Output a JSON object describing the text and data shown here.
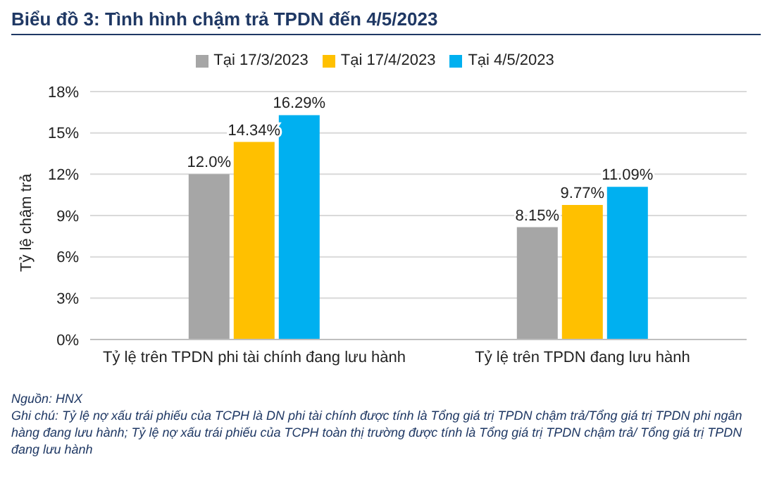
{
  "chart_data": {
    "type": "bar",
    "title": "Biểu đồ 3: Tình hình chậm trả TPDN đến 4/5/2023",
    "ylabel": "Tỷ lệ chậm trả",
    "categories": [
      "Tỷ lệ trên TPDN phi tài chính đang lưu hành",
      "Tỷ lệ trên TPDN đang lưu hành"
    ],
    "series": [
      {
        "name": "Tại 17/3/2023",
        "color": "#a6a6a6",
        "values": [
          12.0,
          8.15
        ],
        "value_labels": [
          "12.0%",
          "8.15%"
        ]
      },
      {
        "name": "Tại 17/4/2023",
        "color": "#ffc000",
        "values": [
          14.34,
          9.77
        ],
        "value_labels": [
          "14.34%",
          "9.77%"
        ]
      },
      {
        "name": "Tại 4/5/2023",
        "color": "#00b0f0",
        "values": [
          16.29,
          11.09
        ],
        "value_labels": [
          "16.29%",
          "11.09%"
        ]
      }
    ],
    "ylim": [
      0,
      18
    ],
    "yticks": [
      {
        "value": 0,
        "label": "0%"
      },
      {
        "value": 3,
        "label": "3%"
      },
      {
        "value": 6,
        "label": "6%"
      },
      {
        "value": 9,
        "label": "9%"
      },
      {
        "value": 12,
        "label": "12%"
      },
      {
        "value": 15,
        "label": "15%"
      },
      {
        "value": 18,
        "label": "18%"
      }
    ],
    "grid": "y",
    "legend": "top",
    "annotations": [
      "Nguồn: HNX",
      "Ghi chú: Tỷ lệ nợ xấu trái phiếu của TCPH là DN phi tài chính được tính là Tổng giá trị TPDN chậm trả/Tổng giá trị TPDN phi ngân hàng đang lưu hành; Tỷ lệ nợ xấu trái phiếu của TCPH toàn thị trường được tính là Tổng giá trị TPDN chậm trả/ Tổng giá trị TPDN đang lưu hành"
    ]
  }
}
